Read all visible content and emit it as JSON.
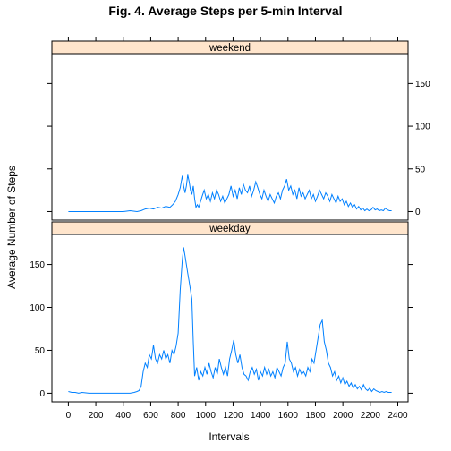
{
  "chart_data": {
    "type": "line",
    "title": "Fig. 4. Average Steps per 5-min Interval",
    "xlabel": "Intervals",
    "ylabel": "Average Number of Steps",
    "xlim": [
      -120,
      2475
    ],
    "ylim": [
      -10,
      185
    ],
    "x_ticks": [
      0,
      200,
      400,
      600,
      800,
      1000,
      1200,
      1400,
      1600,
      1800,
      2000,
      2200,
      2400
    ],
    "y_ticks": [
      0,
      50,
      100,
      150
    ],
    "line_color": "#0080ff",
    "strip_color": "#ffe5cc",
    "panels": [
      {
        "name": "weekend",
        "points": [
          [
            0,
            0
          ],
          [
            100,
            0
          ],
          [
            200,
            0
          ],
          [
            300,
            0
          ],
          [
            400,
            0
          ],
          [
            450,
            1
          ],
          [
            500,
            0
          ],
          [
            530,
            1
          ],
          [
            560,
            3
          ],
          [
            590,
            4
          ],
          [
            620,
            3
          ],
          [
            650,
            5
          ],
          [
            680,
            4
          ],
          [
            710,
            6
          ],
          [
            740,
            5
          ],
          [
            760,
            8
          ],
          [
            780,
            12
          ],
          [
            800,
            20
          ],
          [
            815,
            28
          ],
          [
            830,
            42
          ],
          [
            840,
            30
          ],
          [
            850,
            22
          ],
          [
            860,
            30
          ],
          [
            870,
            43
          ],
          [
            880,
            35
          ],
          [
            890,
            25
          ],
          [
            900,
            20
          ],
          [
            910,
            30
          ],
          [
            920,
            15
          ],
          [
            930,
            5
          ],
          [
            940,
            8
          ],
          [
            950,
            5
          ],
          [
            960,
            10
          ],
          [
            975,
            18
          ],
          [
            990,
            25
          ],
          [
            1005,
            15
          ],
          [
            1020,
            20
          ],
          [
            1035,
            12
          ],
          [
            1050,
            22
          ],
          [
            1065,
            15
          ],
          [
            1080,
            25
          ],
          [
            1095,
            20
          ],
          [
            1110,
            12
          ],
          [
            1125,
            18
          ],
          [
            1140,
            10
          ],
          [
            1155,
            15
          ],
          [
            1170,
            20
          ],
          [
            1185,
            30
          ],
          [
            1200,
            18
          ],
          [
            1215,
            25
          ],
          [
            1230,
            15
          ],
          [
            1245,
            28
          ],
          [
            1260,
            20
          ],
          [
            1275,
            32
          ],
          [
            1290,
            25
          ],
          [
            1305,
            22
          ],
          [
            1320,
            30
          ],
          [
            1335,
            18
          ],
          [
            1350,
            25
          ],
          [
            1365,
            35
          ],
          [
            1380,
            28
          ],
          [
            1395,
            20
          ],
          [
            1410,
            15
          ],
          [
            1425,
            25
          ],
          [
            1440,
            18
          ],
          [
            1455,
            12
          ],
          [
            1470,
            20
          ],
          [
            1485,
            15
          ],
          [
            1500,
            10
          ],
          [
            1515,
            18
          ],
          [
            1530,
            22
          ],
          [
            1545,
            15
          ],
          [
            1560,
            25
          ],
          [
            1575,
            30
          ],
          [
            1590,
            38
          ],
          [
            1605,
            25
          ],
          [
            1620,
            30
          ],
          [
            1635,
            20
          ],
          [
            1650,
            25
          ],
          [
            1665,
            15
          ],
          [
            1680,
            28
          ],
          [
            1695,
            18
          ],
          [
            1710,
            22
          ],
          [
            1725,
            15
          ],
          [
            1740,
            20
          ],
          [
            1755,
            25
          ],
          [
            1770,
            15
          ],
          [
            1785,
            20
          ],
          [
            1800,
            12
          ],
          [
            1815,
            18
          ],
          [
            1830,
            25
          ],
          [
            1845,
            20
          ],
          [
            1860,
            15
          ],
          [
            1875,
            22
          ],
          [
            1890,
            18
          ],
          [
            1905,
            12
          ],
          [
            1920,
            20
          ],
          [
            1935,
            15
          ],
          [
            1950,
            10
          ],
          [
            1965,
            18
          ],
          [
            1980,
            12
          ],
          [
            1995,
            15
          ],
          [
            2010,
            8
          ],
          [
            2025,
            12
          ],
          [
            2040,
            6
          ],
          [
            2055,
            10
          ],
          [
            2070,
            5
          ],
          [
            2085,
            8
          ],
          [
            2100,
            3
          ],
          [
            2115,
            6
          ],
          [
            2130,
            2
          ],
          [
            2145,
            4
          ],
          [
            2160,
            1
          ],
          [
            2175,
            3
          ],
          [
            2190,
            1
          ],
          [
            2205,
            2
          ],
          [
            2220,
            5
          ],
          [
            2235,
            2
          ],
          [
            2250,
            3
          ],
          [
            2265,
            1
          ],
          [
            2280,
            2
          ],
          [
            2295,
            1
          ],
          [
            2310,
            4
          ],
          [
            2325,
            2
          ],
          [
            2340,
            1
          ],
          [
            2355,
            1
          ]
        ]
      },
      {
        "name": "weekday",
        "points": [
          [
            0,
            2
          ],
          [
            25,
            1
          ],
          [
            50,
            1
          ],
          [
            75,
            0
          ],
          [
            100,
            1
          ],
          [
            150,
            0
          ],
          [
            200,
            0
          ],
          [
            250,
            0
          ],
          [
            300,
            0
          ],
          [
            350,
            0
          ],
          [
            400,
            0
          ],
          [
            450,
            0
          ],
          [
            480,
            1
          ],
          [
            500,
            2
          ],
          [
            515,
            3
          ],
          [
            530,
            8
          ],
          [
            545,
            25
          ],
          [
            560,
            35
          ],
          [
            575,
            30
          ],
          [
            590,
            45
          ],
          [
            605,
            40
          ],
          [
            620,
            56
          ],
          [
            635,
            40
          ],
          [
            650,
            35
          ],
          [
            665,
            45
          ],
          [
            680,
            40
          ],
          [
            695,
            50
          ],
          [
            710,
            40
          ],
          [
            725,
            45
          ],
          [
            740,
            35
          ],
          [
            755,
            50
          ],
          [
            770,
            45
          ],
          [
            785,
            55
          ],
          [
            800,
            70
          ],
          [
            815,
            120
          ],
          [
            830,
            155
          ],
          [
            840,
            170
          ],
          [
            850,
            160
          ],
          [
            860,
            150
          ],
          [
            870,
            140
          ],
          [
            880,
            130
          ],
          [
            890,
            120
          ],
          [
            900,
            110
          ],
          [
            910,
            60
          ],
          [
            920,
            20
          ],
          [
            935,
            30
          ],
          [
            950,
            15
          ],
          [
            965,
            25
          ],
          [
            980,
            20
          ],
          [
            995,
            30
          ],
          [
            1010,
            22
          ],
          [
            1025,
            35
          ],
          [
            1040,
            25
          ],
          [
            1055,
            18
          ],
          [
            1070,
            30
          ],
          [
            1085,
            22
          ],
          [
            1100,
            40
          ],
          [
            1115,
            30
          ],
          [
            1130,
            22
          ],
          [
            1145,
            30
          ],
          [
            1160,
            20
          ],
          [
            1175,
            40
          ],
          [
            1190,
            50
          ],
          [
            1205,
            62
          ],
          [
            1220,
            45
          ],
          [
            1235,
            35
          ],
          [
            1250,
            45
          ],
          [
            1265,
            30
          ],
          [
            1280,
            22
          ],
          [
            1295,
            20
          ],
          [
            1310,
            15
          ],
          [
            1325,
            25
          ],
          [
            1340,
            30
          ],
          [
            1355,
            22
          ],
          [
            1370,
            28
          ],
          [
            1385,
            15
          ],
          [
            1400,
            25
          ],
          [
            1415,
            20
          ],
          [
            1430,
            30
          ],
          [
            1445,
            22
          ],
          [
            1460,
            28
          ],
          [
            1475,
            20
          ],
          [
            1490,
            25
          ],
          [
            1505,
            18
          ],
          [
            1520,
            30
          ],
          [
            1535,
            25
          ],
          [
            1550,
            20
          ],
          [
            1565,
            30
          ],
          [
            1580,
            35
          ],
          [
            1595,
            60
          ],
          [
            1610,
            40
          ],
          [
            1625,
            35
          ],
          [
            1640,
            25
          ],
          [
            1655,
            30
          ],
          [
            1670,
            20
          ],
          [
            1685,
            28
          ],
          [
            1700,
            22
          ],
          [
            1715,
            25
          ],
          [
            1730,
            20
          ],
          [
            1745,
            30
          ],
          [
            1760,
            25
          ],
          [
            1775,
            40
          ],
          [
            1790,
            35
          ],
          [
            1805,
            50
          ],
          [
            1820,
            65
          ],
          [
            1835,
            80
          ],
          [
            1850,
            85
          ],
          [
            1865,
            60
          ],
          [
            1880,
            50
          ],
          [
            1895,
            35
          ],
          [
            1910,
            30
          ],
          [
            1925,
            20
          ],
          [
            1940,
            25
          ],
          [
            1955,
            15
          ],
          [
            1970,
            20
          ],
          [
            1985,
            12
          ],
          [
            2000,
            18
          ],
          [
            2015,
            10
          ],
          [
            2030,
            14
          ],
          [
            2045,
            8
          ],
          [
            2060,
            12
          ],
          [
            2075,
            6
          ],
          [
            2090,
            10
          ],
          [
            2105,
            5
          ],
          [
            2120,
            8
          ],
          [
            2135,
            4
          ],
          [
            2150,
            10
          ],
          [
            2165,
            5
          ],
          [
            2180,
            3
          ],
          [
            2195,
            6
          ],
          [
            2210,
            2
          ],
          [
            2225,
            5
          ],
          [
            2240,
            3
          ],
          [
            2255,
            2
          ],
          [
            2270,
            1
          ],
          [
            2285,
            2
          ],
          [
            2300,
            1
          ],
          [
            2315,
            2
          ],
          [
            2330,
            1
          ],
          [
            2355,
            1
          ]
        ]
      }
    ]
  }
}
